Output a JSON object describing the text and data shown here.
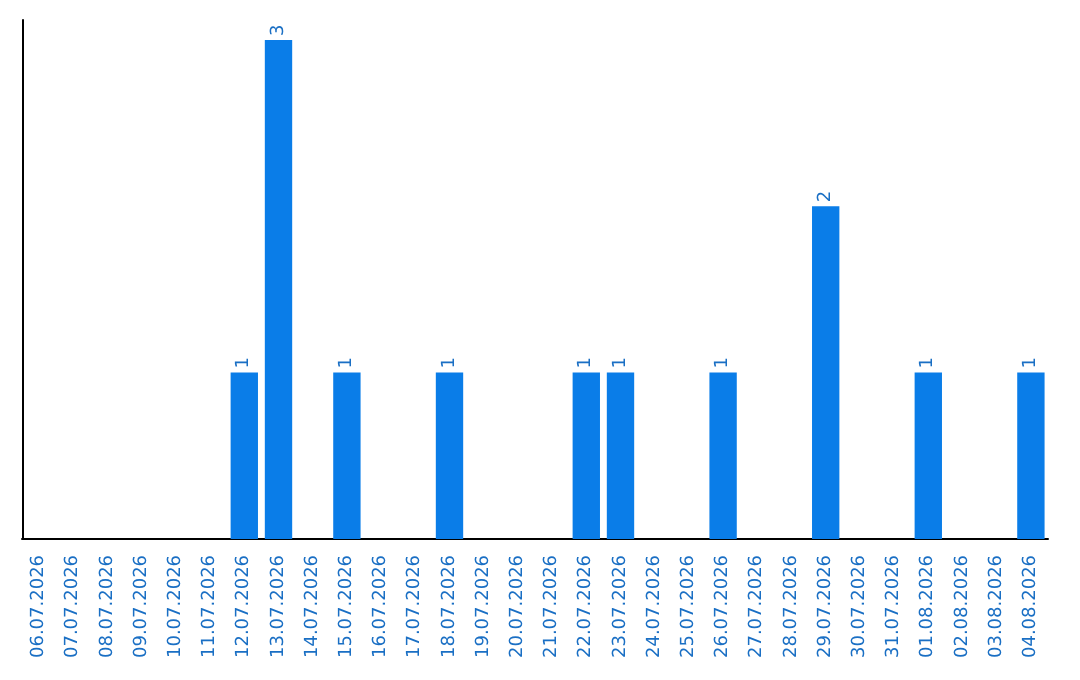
{
  "chart_data": {
    "type": "bar",
    "categories": [
      "06.07.2026",
      "07.07.2026",
      "08.07.2026",
      "09.07.2026",
      "10.07.2026",
      "11.07.2026",
      "12.07.2026",
      "13.07.2026",
      "14.07.2026",
      "15.07.2026",
      "16.07.2026",
      "17.07.2026",
      "18.07.2026",
      "19.07.2026",
      "20.07.2026",
      "21.07.2026",
      "22.07.2026",
      "23.07.2026",
      "24.07.2026",
      "25.07.2026",
      "26.07.2026",
      "27.07.2026",
      "28.07.2026",
      "29.07.2026",
      "30.07.2026",
      "31.07.2026",
      "01.08.2026",
      "02.08.2026",
      "03.08.2026",
      "04.08.2026"
    ],
    "values": [
      0,
      0,
      0,
      0,
      0,
      0,
      1,
      3,
      0,
      1,
      0,
      0,
      1,
      0,
      0,
      0,
      1,
      1,
      0,
      0,
      1,
      0,
      0,
      2,
      0,
      0,
      1,
      0,
      0,
      1
    ],
    "value_labels": [
      null,
      null,
      null,
      null,
      null,
      null,
      "1",
      "3",
      null,
      "1",
      null,
      null,
      "1",
      null,
      null,
      null,
      "1",
      "1",
      null,
      null,
      "1",
      null,
      null,
      "2",
      null,
      null,
      "1",
      null,
      null,
      "1"
    ],
    "color": "#0a7de8"
  }
}
